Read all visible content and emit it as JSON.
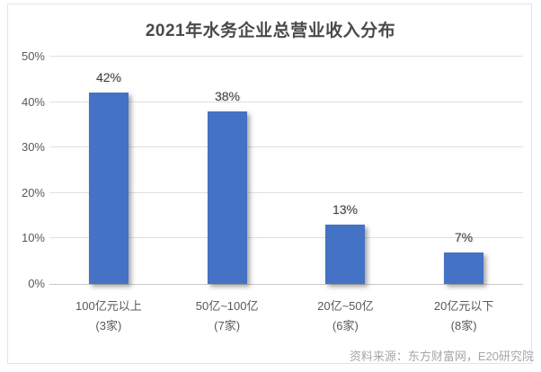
{
  "chart_data": {
    "type": "bar",
    "title": "2021年水务企业总营业收入分布",
    "categories": [
      "100亿元以上",
      "50亿~100亿",
      "20亿~50亿",
      "20亿元以下"
    ],
    "category_counts": [
      "(3家)",
      "(7家)",
      "(6家)",
      "(8家)"
    ],
    "values": [
      42,
      38,
      13,
      7
    ],
    "data_labels": [
      "42%",
      "38%",
      "13%",
      "7%"
    ],
    "unit": "%",
    "ylim": [
      0,
      50
    ],
    "ytick_labels": [
      "0%",
      "10%",
      "20%",
      "30%",
      "40%",
      "50%"
    ],
    "grid": true,
    "legend": false,
    "xlabel": "",
    "ylabel": "",
    "source": "资料来源：东方财富网，E20研究院"
  },
  "colors": {
    "bar": "#4472C4",
    "title_text": "#4a4a4a",
    "axis_text": "#595959",
    "data_label_text": "#404040",
    "source_text": "#a6a6a6",
    "gridline": "#e0e0e0",
    "axis_line": "#c9c9c9",
    "frame_border": "#e4e4e4",
    "background": "#ffffff"
  }
}
